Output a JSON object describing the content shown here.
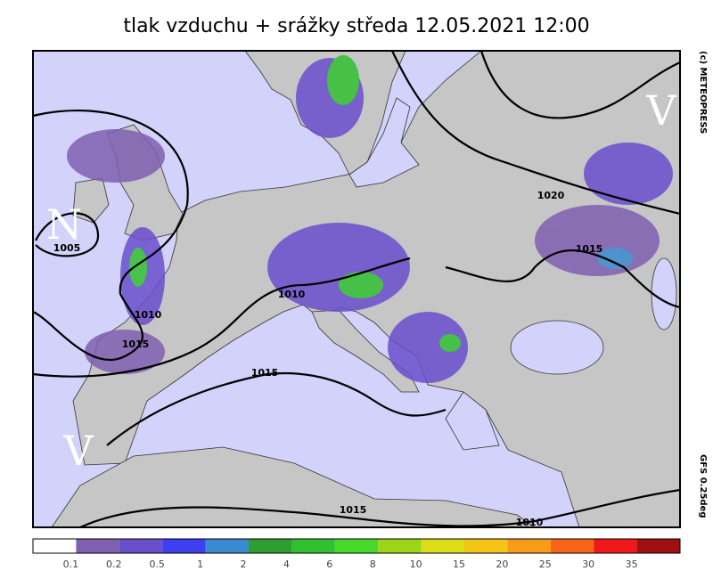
{
  "header": {
    "title": "tlak vzduchu + srážky  středa 12.05.2021 12:00"
  },
  "map": {
    "centers": [
      "N",
      "V",
      "V"
    ],
    "isobar_labels": [
      "1005",
      "1010",
      "1015",
      "1010",
      "1015",
      "1015",
      "1010",
      "1020",
      "1015"
    ],
    "copyright": "(c) METEOPRESS",
    "model": "GFS 0.25deg"
  },
  "legend": {
    "colors": [
      "#ffffff",
      "#7f5fb0",
      "#6a4fcc",
      "#3c40f0",
      "#3a8ad0",
      "#2e9e32",
      "#30c030",
      "#48d82a",
      "#9cd418",
      "#dcdc18",
      "#f4c418",
      "#f89c18",
      "#f86418",
      "#f01818",
      "#a01010"
    ],
    "labels": [
      "0.1",
      "0.2",
      "0.5",
      "1",
      "2",
      "4",
      "6",
      "8",
      "10",
      "15",
      "20",
      "25",
      "30",
      "35"
    ]
  }
}
